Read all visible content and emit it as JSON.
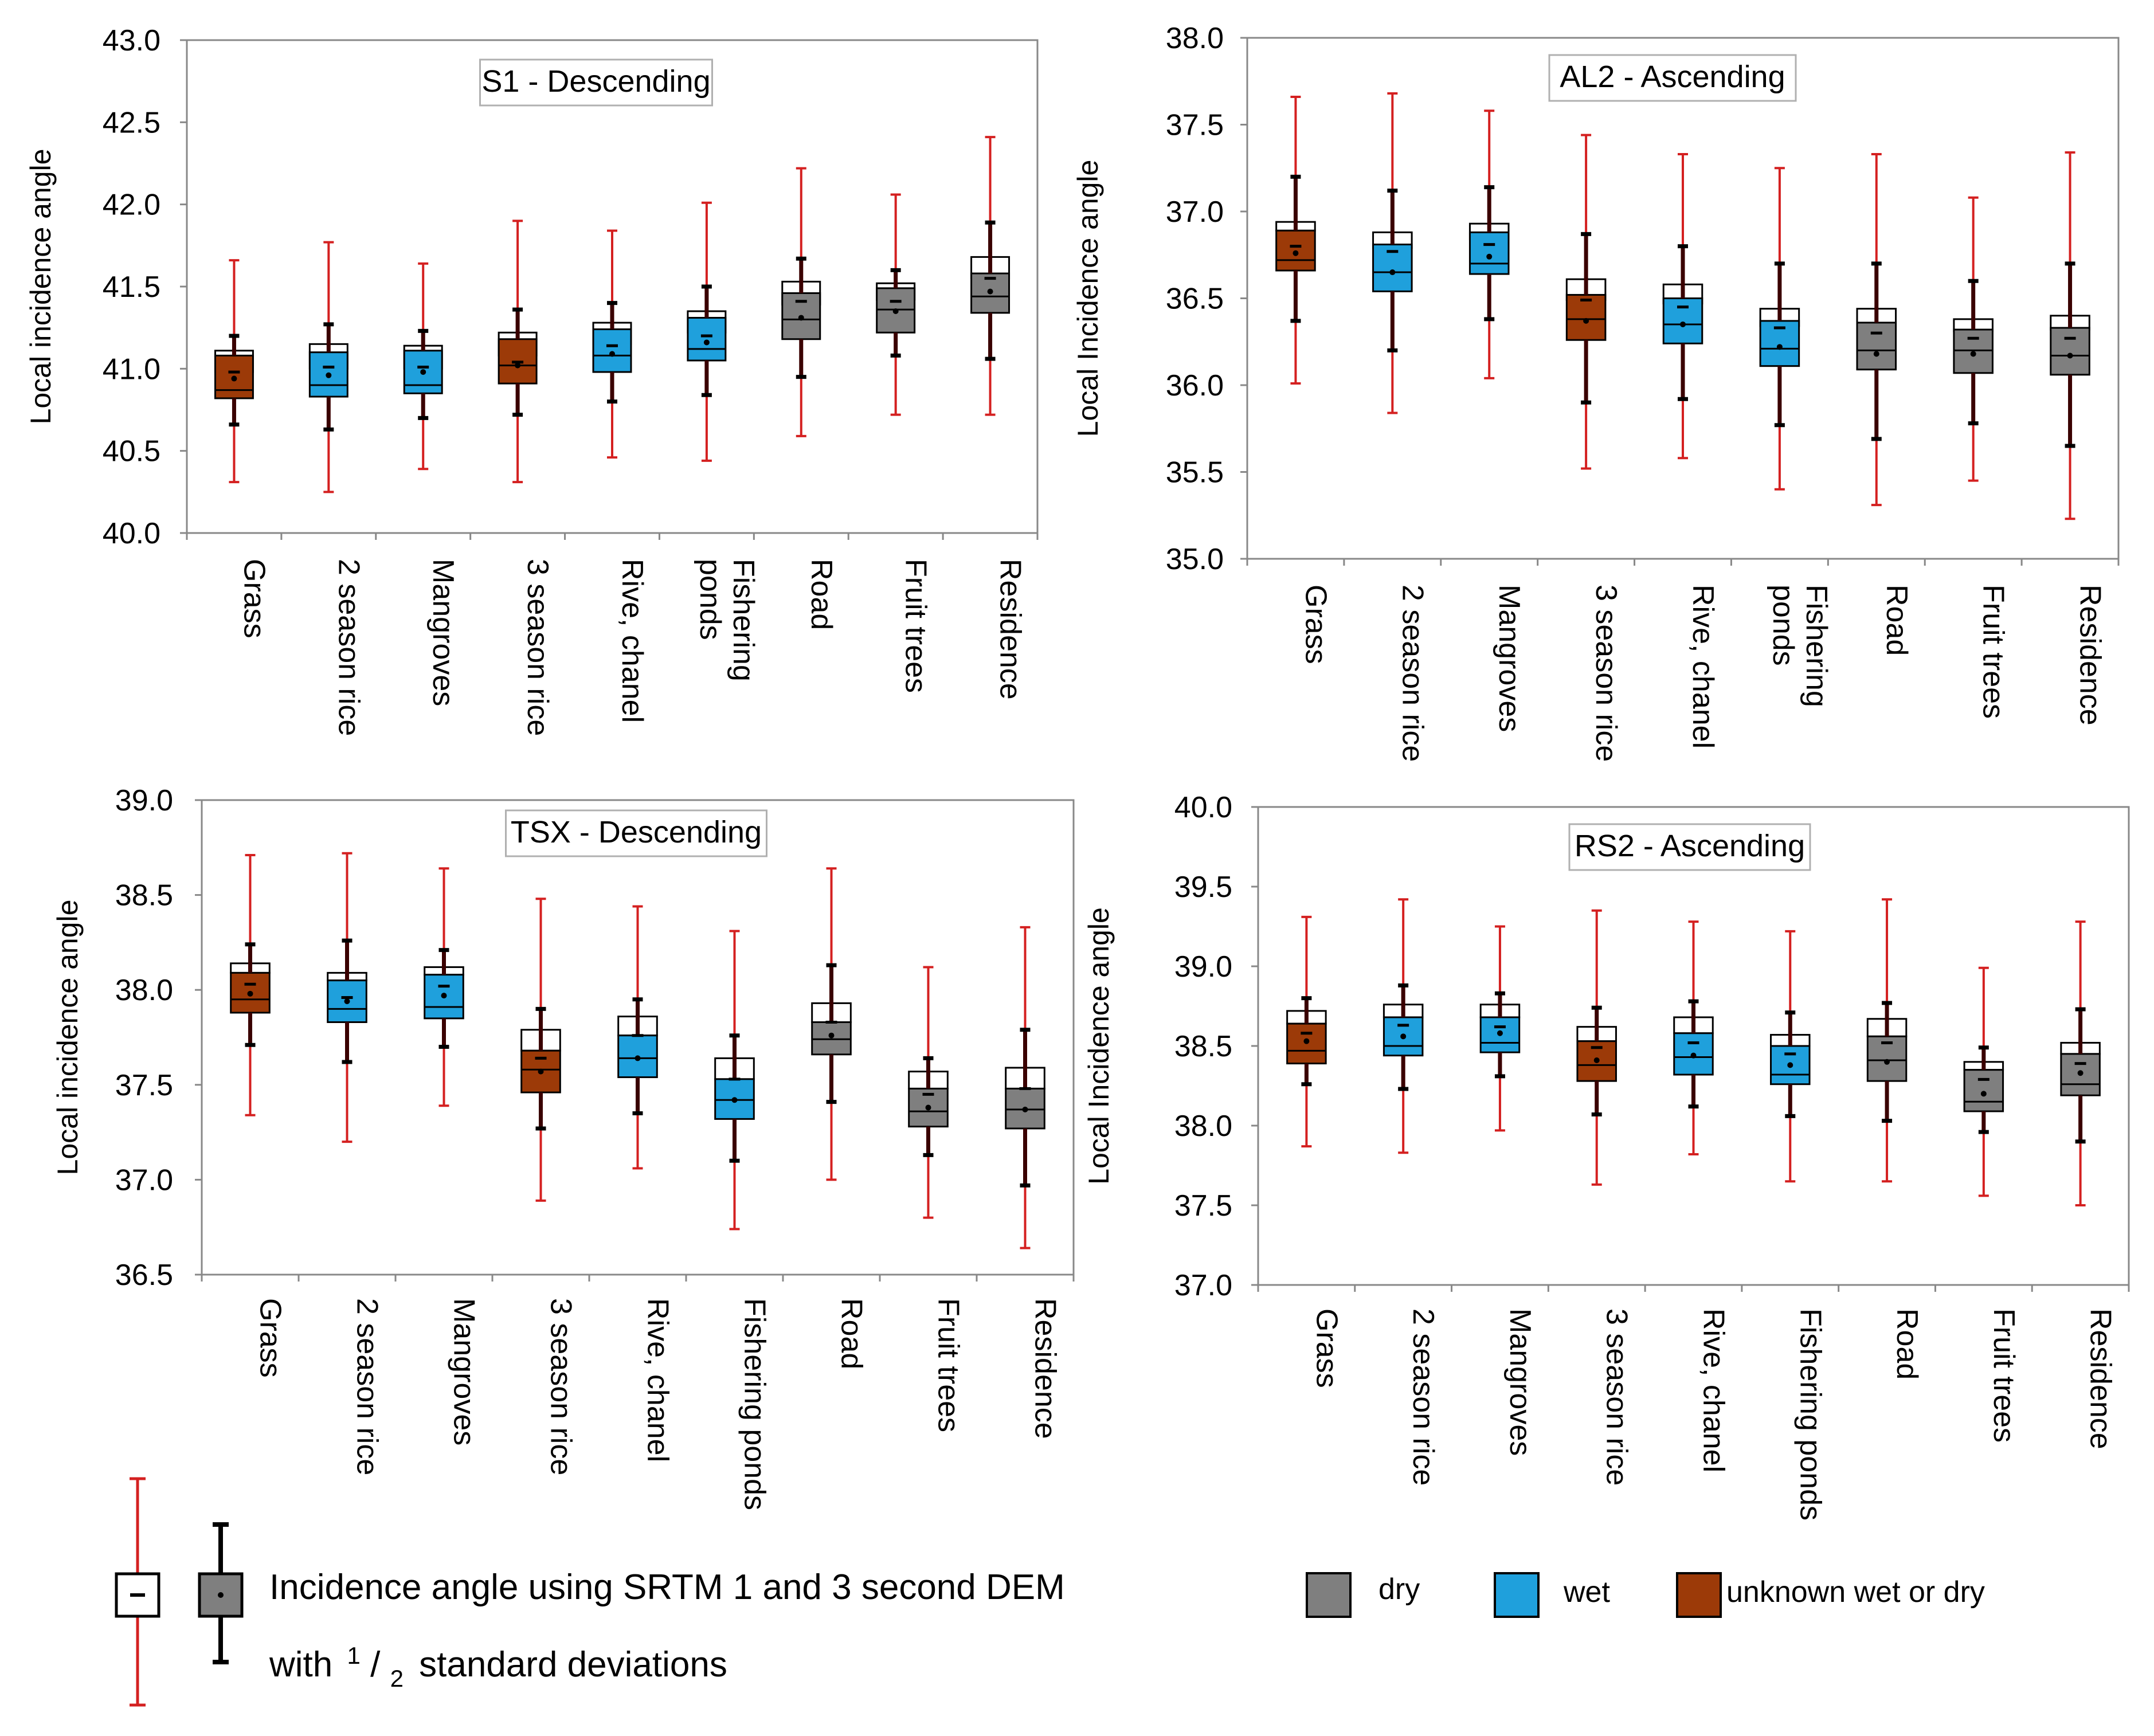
{
  "colors": {
    "dry": "#7f7f7f",
    "wet": "#1fa0dc",
    "unknown": "#9c3a08",
    "whisker": "#d42020",
    "frame": "#888888"
  },
  "chart_data": [
    {
      "type": "boxplot",
      "title": "S1 - Descending",
      "ylabel": "Local incidence angle",
      "ylim": [
        40.0,
        43.0
      ],
      "yticks": [
        "40.0",
        "40.5",
        "41.0",
        "41.5",
        "42.0",
        "42.5",
        "43.0"
      ],
      "categories": [
        "Grass",
        "2 season rice",
        "Mangroves",
        "3 season rice",
        "Rive, chanel",
        "Fishering ponds",
        "Road",
        "Fruit trees",
        "Residence"
      ],
      "category_lines": [
        [
          "Grass"
        ],
        [
          "2 season rice"
        ],
        [
          "Mangroves"
        ],
        [
          "3 season rice"
        ],
        [
          "Rive, chanel"
        ],
        [
          "Fishering",
          "ponds"
        ],
        [
          "Road"
        ],
        [
          "Fruit trees"
        ],
        [
          "Residence"
        ]
      ],
      "classes": [
        "unknown",
        "wet",
        "wet",
        "unknown",
        "wet",
        "wet",
        "dry",
        "dry",
        "dry"
      ],
      "srtm1": {
        "mean": [
          40.98,
          41.01,
          41.01,
          41.04,
          41.14,
          41.2,
          41.41,
          41.41,
          41.55
        ],
        "q1": [
          40.82,
          40.83,
          40.85,
          40.91,
          40.98,
          41.05,
          41.18,
          41.22,
          41.34
        ],
        "q3": [
          41.08,
          41.1,
          41.11,
          41.18,
          41.24,
          41.31,
          41.46,
          41.49,
          41.58
        ],
        "median": [
          40.87,
          40.9,
          40.9,
          41.02,
          41.08,
          41.12,
          41.3,
          41.36,
          41.44
        ],
        "sd1": [
          41.2,
          41.27,
          41.23,
          41.36,
          41.4,
          41.5,
          41.67,
          41.6,
          41.89
        ],
        "sd1_low": [
          40.66,
          40.63,
          40.7,
          40.72,
          40.8,
          40.84,
          40.95,
          41.08,
          41.06
        ]
      },
      "srtm3": {
        "mean": [
          40.94,
          40.96,
          40.98,
          41.02,
          41.09,
          41.16,
          41.31,
          41.35,
          41.47
        ],
        "q1": [
          40.98,
          41.0,
          41.0,
          41.08,
          41.15,
          41.22,
          41.39,
          41.42,
          41.55
        ],
        "q3": [
          41.11,
          41.15,
          41.14,
          41.22,
          41.28,
          41.35,
          41.53,
          41.52,
          41.68
        ],
        "sd2": [
          41.66,
          41.77,
          41.64,
          41.9,
          41.84,
          42.01,
          42.22,
          42.06,
          42.41
        ],
        "sd2_low": [
          40.31,
          40.25,
          40.39,
          40.31,
          40.46,
          40.44,
          40.59,
          40.72,
          40.72
        ]
      }
    },
    {
      "type": "boxplot",
      "title": "AL2 - Ascending",
      "ylabel": "Local Incidence angle",
      "ylim": [
        35.0,
        38.0
      ],
      "yticks": [
        "35.0",
        "35.5",
        "36.0",
        "36.5",
        "37.0",
        "37.5",
        "38.0"
      ],
      "categories": [
        "Grass",
        "2 season rice",
        "Mangroves",
        "3 season rice",
        "Rive, chanel",
        "Fishering ponds",
        "Road",
        "Fruit trees",
        "Residence"
      ],
      "category_lines": [
        [
          "Grass"
        ],
        [
          "2 season rice"
        ],
        [
          "Mangroves"
        ],
        [
          "3 season rice"
        ],
        [
          "Rive, chanel"
        ],
        [
          "Fishering",
          "ponds"
        ],
        [
          "Road"
        ],
        [
          "Fruit trees"
        ],
        [
          "Residence"
        ]
      ],
      "classes": [
        "unknown",
        "wet",
        "wet",
        "unknown",
        "wet",
        "wet",
        "dry",
        "dry",
        "dry"
      ],
      "srtm1": {
        "mean": [
          36.8,
          36.77,
          36.81,
          36.49,
          36.45,
          36.33,
          36.3,
          36.27,
          36.27
        ],
        "q1": [
          36.66,
          36.54,
          36.64,
          36.26,
          36.24,
          36.11,
          36.09,
          36.07,
          36.06
        ],
        "q3": [
          36.89,
          36.81,
          36.88,
          36.52,
          36.5,
          36.37,
          36.36,
          36.32,
          36.33
        ],
        "median": [
          36.72,
          36.65,
          36.7,
          36.38,
          36.35,
          36.21,
          36.2,
          36.2,
          36.17
        ],
        "sd1": [
          37.2,
          37.12,
          37.14,
          36.87,
          36.8,
          36.7,
          36.7,
          36.6,
          36.7
        ],
        "sd1_low": [
          36.37,
          36.2,
          36.38,
          35.9,
          35.92,
          35.77,
          35.69,
          35.78,
          35.65
        ]
      },
      "srtm3": {
        "mean": [
          36.76,
          36.65,
          36.74,
          36.37,
          36.35,
          36.22,
          36.18,
          36.18,
          36.17
        ],
        "q1": [
          36.89,
          36.79,
          36.84,
          36.49,
          36.47,
          36.34,
          36.32,
          36.31,
          36.32
        ],
        "q3": [
          36.94,
          36.88,
          36.93,
          36.61,
          36.58,
          36.44,
          36.44,
          36.38,
          36.4
        ],
        "sd2": [
          37.66,
          37.68,
          37.58,
          37.44,
          37.33,
          37.25,
          37.33,
          37.08,
          37.34
        ],
        "sd2_low": [
          36.01,
          35.84,
          36.04,
          35.52,
          35.58,
          35.4,
          35.31,
          35.45,
          35.23
        ]
      }
    },
    {
      "type": "boxplot",
      "title": "TSX - Descending",
      "ylabel": "Local incidence angle",
      "ylim": [
        36.5,
        39.0
      ],
      "yticks": [
        "36.5",
        "37.0",
        "37.5",
        "38.0",
        "38.5",
        "39.0"
      ],
      "categories": [
        "Grass",
        "2 season rice",
        "Mangroves",
        "3 season rice",
        "Rive, chanel",
        "Fishering ponds",
        "Road",
        "Fruit trees",
        "Residence"
      ],
      "category_lines": [
        [
          "Grass"
        ],
        [
          "2 season rice"
        ],
        [
          "Mangroves"
        ],
        [
          "3 season rice"
        ],
        [
          "Rive, chanel"
        ],
        [
          "Fishering ponds"
        ],
        [
          "Road"
        ],
        [
          "Fruit trees"
        ],
        [
          "Residence"
        ]
      ],
      "classes": [
        "unknown",
        "wet",
        "wet",
        "unknown",
        "wet",
        "wet",
        "dry",
        "dry",
        "dry"
      ],
      "srtm1": {
        "mean": [
          38.03,
          37.96,
          38.02,
          37.64,
          37.76,
          37.53,
          37.83,
          37.45,
          37.48
        ],
        "q1": [
          37.88,
          37.83,
          37.85,
          37.46,
          37.54,
          37.32,
          37.66,
          37.28,
          37.27
        ],
        "q3": [
          38.09,
          38.05,
          38.08,
          37.68,
          37.76,
          37.53,
          37.83,
          37.48,
          37.48
        ],
        "median": [
          37.95,
          37.9,
          37.91,
          37.58,
          37.64,
          37.42,
          37.74,
          37.36,
          37.37
        ],
        "sd1": [
          38.24,
          38.26,
          38.21,
          37.9,
          37.95,
          37.76,
          38.13,
          37.64,
          37.79
        ],
        "sd1_low": [
          37.71,
          37.62,
          37.7,
          37.27,
          37.35,
          37.1,
          37.41,
          37.13,
          36.97
        ]
      },
      "srtm3": {
        "mean": [
          37.98,
          37.94,
          37.97,
          37.57,
          37.64,
          37.42,
          37.76,
          37.38,
          37.37
        ],
        "q1": [
          38.09,
          38.05,
          38.08,
          37.68,
          37.76,
          37.53,
          37.83,
          37.48,
          37.48
        ],
        "q3": [
          38.14,
          38.09,
          38.12,
          37.79,
          37.86,
          37.64,
          37.93,
          37.57,
          37.59
        ],
        "sd2": [
          38.71,
          38.72,
          38.64,
          38.48,
          38.44,
          38.31,
          38.64,
          38.12,
          38.33
        ],
        "sd2_low": [
          37.34,
          37.2,
          37.39,
          36.89,
          37.06,
          36.74,
          37.0,
          36.8,
          36.64
        ]
      }
    },
    {
      "type": "boxplot",
      "title": "RS2 - Ascending",
      "ylabel": "Local Incidence angle",
      "ylim": [
        37.0,
        40.0
      ],
      "yticks": [
        "37.0",
        "37.5",
        "38.0",
        "38.5",
        "39.0",
        "39.5",
        "40.0"
      ],
      "categories": [
        "Grass",
        "2 season rice",
        "Mangroves",
        "3 season rice",
        "Rive, chanel",
        "Fishering ponds",
        "Road",
        "Fruit trees",
        "Residence"
      ],
      "category_lines": [
        [
          "Grass"
        ],
        [
          "2 season rice"
        ],
        [
          "Mangroves"
        ],
        [
          "3 season rice"
        ],
        [
          "Rive, chanel"
        ],
        [
          "Fishering ponds"
        ],
        [
          "Road"
        ],
        [
          "Fruit trees"
        ],
        [
          "Residence"
        ]
      ],
      "classes": [
        "unknown",
        "wet",
        "wet",
        "unknown",
        "wet",
        "wet",
        "dry",
        "dry",
        "dry"
      ],
      "srtm1": {
        "mean": [
          38.58,
          38.63,
          38.62,
          38.49,
          38.52,
          38.45,
          38.52,
          38.29,
          38.39
        ],
        "q1": [
          38.39,
          38.44,
          38.46,
          38.28,
          38.32,
          38.26,
          38.28,
          38.09,
          38.19
        ],
        "q3": [
          38.64,
          38.68,
          38.68,
          38.53,
          38.58,
          38.5,
          38.56,
          38.35,
          38.45
        ],
        "median": [
          38.47,
          38.5,
          38.52,
          38.38,
          38.43,
          38.32,
          38.41,
          38.15,
          38.26
        ],
        "sd1": [
          38.8,
          38.88,
          38.83,
          38.74,
          38.78,
          38.71,
          38.77,
          38.49,
          38.73
        ],
        "sd1_low": [
          38.26,
          38.23,
          38.31,
          38.07,
          38.12,
          38.06,
          38.03,
          37.96,
          37.9
        ]
      },
      "srtm3": {
        "mean": [
          38.53,
          38.56,
          38.58,
          38.41,
          38.44,
          38.38,
          38.4,
          38.2,
          38.33
        ],
        "q1": [
          38.64,
          38.68,
          38.68,
          38.53,
          38.58,
          38.5,
          38.56,
          38.35,
          38.45
        ],
        "q3": [
          38.72,
          38.76,
          38.76,
          38.62,
          38.68,
          38.57,
          38.67,
          38.4,
          38.52
        ],
        "sd2": [
          39.31,
          39.42,
          39.25,
          39.35,
          39.28,
          39.22,
          39.42,
          38.99,
          39.28
        ],
        "sd2_low": [
          37.87,
          37.83,
          37.97,
          37.63,
          37.82,
          37.65,
          37.65,
          37.56,
          37.5
        ]
      }
    }
  ],
  "legend_symbol": {
    "line1": "Incidence angle using SRTM 1 and 3 second DEM",
    "line2_prefix": "with",
    "fraction_num": "1",
    "fraction_slash": "/",
    "fraction_den": "2",
    "line2_suffix": "standard deviations"
  },
  "legend_classes": [
    {
      "key": "dry",
      "label": "dry"
    },
    {
      "key": "wet",
      "label": "wet"
    },
    {
      "key": "unknown",
      "label": "unknown wet or dry"
    }
  ]
}
